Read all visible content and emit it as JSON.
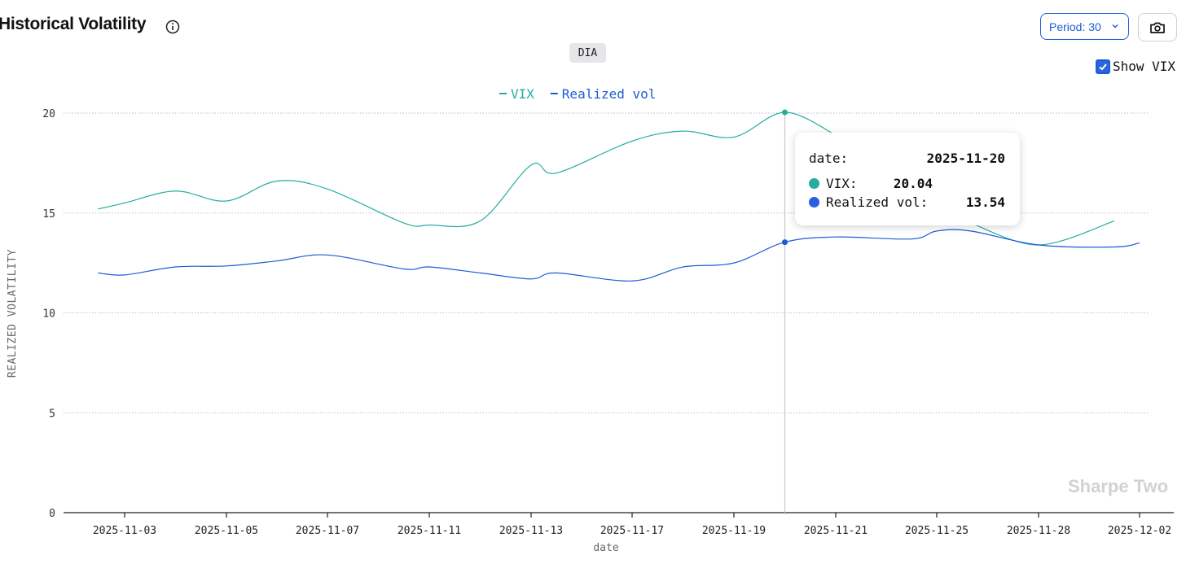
{
  "header": {
    "title": "Historical Volatility",
    "period_label": "Period: 30",
    "ticker": "DIA",
    "show_vix_label": "Show VIX",
    "show_vix_checked": true
  },
  "watermark": "Sharpe Two",
  "tooltip": {
    "date_label": "date:",
    "date_value": "2025-11-20",
    "rows": [
      {
        "label": "VIX:",
        "value": "20.04",
        "color": "#26ada0"
      },
      {
        "label": "Realized vol:",
        "value": "13.54",
        "color": "#1d5bd6"
      }
    ]
  },
  "chart_data": {
    "type": "line",
    "xlabel": "date",
    "ylabel": "REALIZED VOLATILITY",
    "ylim": [
      0,
      20
    ],
    "yticks": [
      "0",
      "5",
      "10",
      "15",
      "20"
    ],
    "x_tick_labels": [
      "2025-11-03",
      "2025-11-05",
      "2025-11-07",
      "2025-11-11",
      "2025-11-13",
      "2025-11-17",
      "2025-11-19",
      "2025-11-21",
      "2025-11-25",
      "2025-11-28",
      "2025-12-02"
    ],
    "x": [
      "2025-11-02",
      "2025-11-03",
      "2025-11-04",
      "2025-11-05",
      "2025-11-06",
      "2025-11-07",
      "2025-11-10",
      "2025-11-11",
      "2025-11-12",
      "2025-11-13",
      "2025-11-14",
      "2025-11-17",
      "2025-11-18",
      "2025-11-19",
      "2025-11-20",
      "2025-11-21",
      "2025-11-24",
      "2025-11-25",
      "2025-11-26",
      "2025-11-28",
      "2025-12-01",
      "2025-12-02"
    ],
    "legend": "top-center",
    "grid": true,
    "hover_date": "2025-11-20",
    "series": [
      {
        "name": "VIX",
        "color": "#26ada0",
        "values": [
          15.2,
          15.5,
          16.1,
          15.6,
          16.6,
          16.2,
          14.5,
          14.4,
          14.6,
          17.4,
          17.0,
          18.6,
          19.1,
          18.8,
          20.04,
          18.9,
          null,
          null,
          14.5,
          13.4,
          14.6,
          null
        ]
      },
      {
        "name": "Realized vol",
        "color": "#1d5bd6",
        "values": [
          12.0,
          11.9,
          12.3,
          12.35,
          12.6,
          12.9,
          12.2,
          12.3,
          12.0,
          11.7,
          12.0,
          11.6,
          12.3,
          12.5,
          13.54,
          13.8,
          13.7,
          14.1,
          14.1,
          13.4,
          13.3,
          13.5
        ]
      }
    ]
  }
}
